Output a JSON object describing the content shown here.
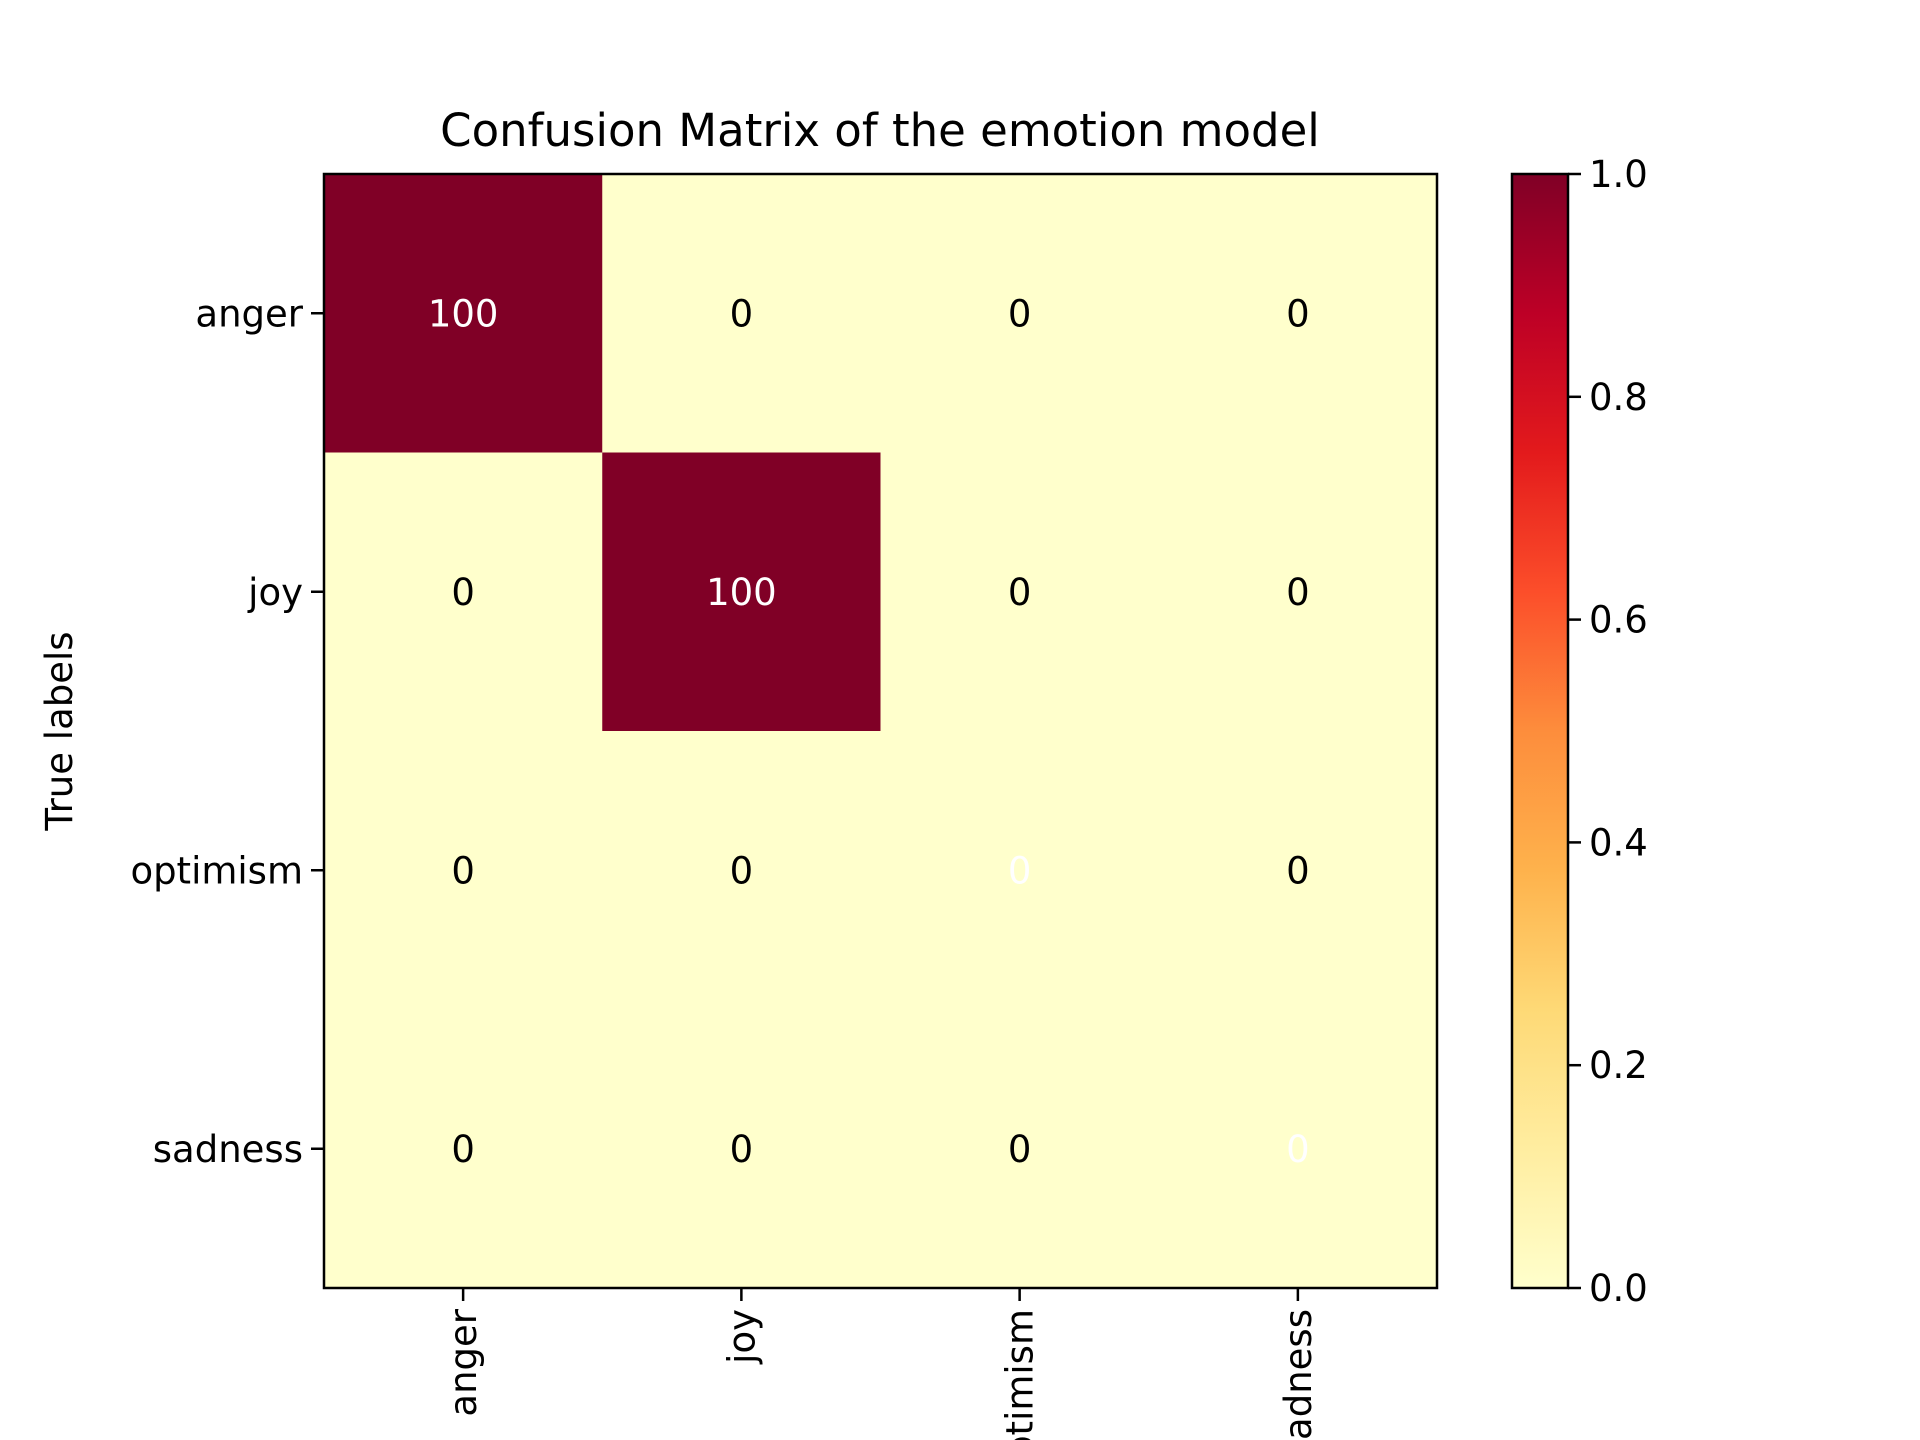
{
  "chart_data": {
    "type": "heatmap",
    "title": "Confusion Matrix of the emotion model",
    "xlabel": "",
    "ylabel": "True labels",
    "row_labels": [
      "anger",
      "joy",
      "optimism",
      "sadness"
    ],
    "col_labels": [
      "anger",
      "joy",
      "optimism",
      "sadness"
    ],
    "values": [
      [
        100,
        0,
        0,
        0
      ],
      [
        0,
        100,
        0,
        0
      ],
      [
        0,
        0,
        0,
        0
      ],
      [
        0,
        0,
        0,
        0
      ]
    ],
    "normalized": [
      [
        1.0,
        0.0,
        0.0,
        0.0
      ],
      [
        0.0,
        1.0,
        0.0,
        0.0
      ],
      [
        0.0,
        0.0,
        0.0,
        0.0
      ],
      [
        0.0,
        0.0,
        0.0,
        0.0
      ]
    ],
    "colorbar": {
      "range": [
        0.0,
        1.0
      ],
      "ticks": [
        "0.0",
        "0.2",
        "0.4",
        "0.6",
        "0.8",
        "1.0"
      ],
      "colormap": "YlOrRd",
      "low_color": "#ffffcc",
      "high_color": "#800026"
    },
    "grid": false
  }
}
